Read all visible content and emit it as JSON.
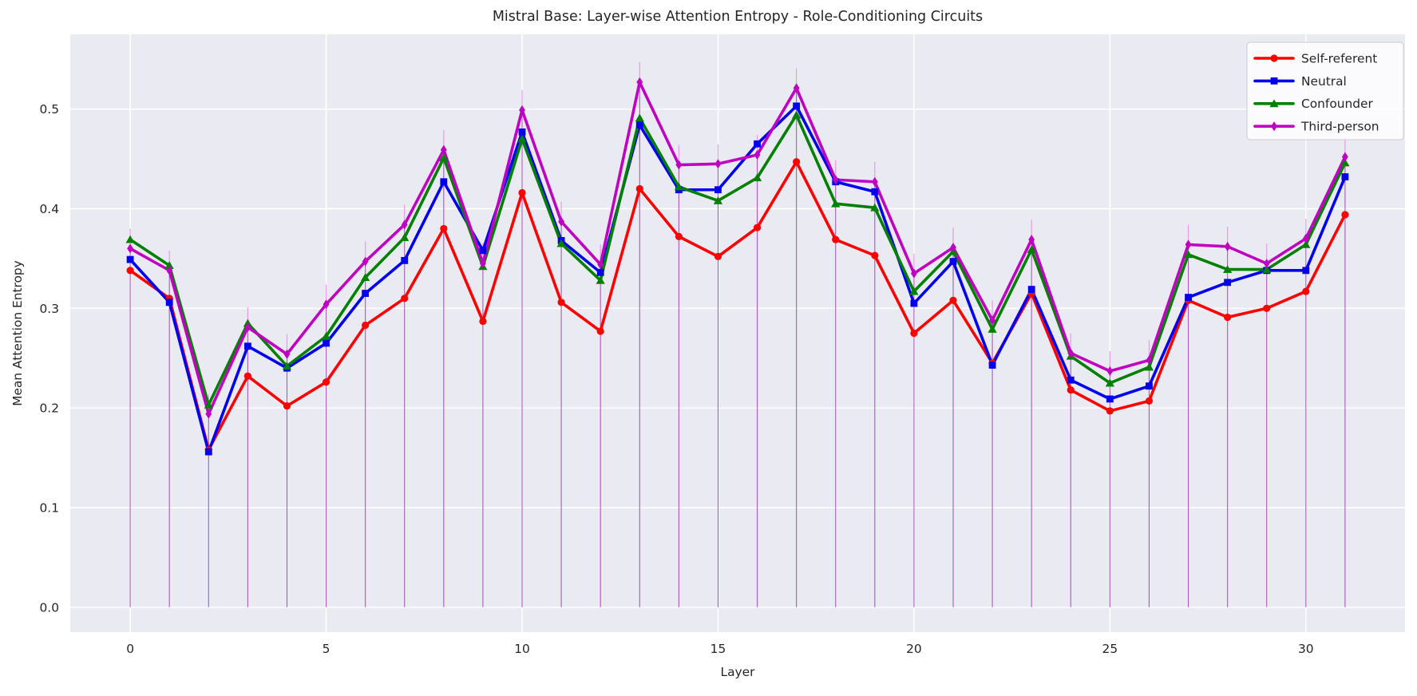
{
  "figure": {
    "title": "Mistral Base: Layer-wise Attention Entropy - Role-Conditioning Circuits",
    "xlabel": "Layer",
    "ylabel": "Mean Attention Entropy",
    "plot_bg": "#eaeaf2",
    "grid_color": "#ffffff",
    "text_color": "#262626",
    "figure_bg": "#ffffff"
  },
  "axes": {
    "x_ticks": [
      0,
      5,
      10,
      15,
      20,
      25,
      30
    ],
    "y_ticks": [
      0.0,
      0.1,
      0.2,
      0.3,
      0.4,
      0.5
    ],
    "xlim": [
      -1.53,
      32.53
    ],
    "ylim": [
      -0.025,
      0.575
    ],
    "grid": true
  },
  "legend": {
    "position": "upper-right",
    "entries": [
      {
        "label": "Self-referent",
        "color": "#ff0000",
        "marker": "circle"
      },
      {
        "label": "Neutral",
        "color": "#0000ee",
        "marker": "square"
      },
      {
        "label": "Confounder",
        "color": "#008000",
        "marker": "triangle"
      },
      {
        "label": "Third-person",
        "color": "#c000c0",
        "marker": "diamond"
      }
    ]
  },
  "chart_data": {
    "type": "line",
    "title": "Mistral Base: Layer-wise Attention Entropy - Role-Conditioning Circuits",
    "xlabel": "Layer",
    "ylabel": "Mean Attention Entropy",
    "x": [
      0,
      1,
      2,
      3,
      4,
      5,
      6,
      7,
      8,
      9,
      10,
      11,
      12,
      13,
      14,
      15,
      16,
      17,
      18,
      19,
      20,
      21,
      22,
      23,
      24,
      25,
      26,
      27,
      28,
      29,
      30,
      31
    ],
    "series": [
      {
        "name": "Self-referent",
        "color": "#ff0000",
        "marker": "circle",
        "values": [
          0.338,
          0.31,
          0.158,
          0.232,
          0.202,
          0.226,
          0.283,
          0.31,
          0.38,
          0.287,
          0.416,
          0.306,
          0.277,
          0.42,
          0.372,
          0.352,
          0.381,
          0.447,
          0.369,
          0.353,
          0.275,
          0.308,
          0.245,
          0.315,
          0.218,
          0.197,
          0.207,
          0.308,
          0.291,
          0.3,
          0.317,
          0.394
        ]
      },
      {
        "name": "Neutral",
        "color": "#0000ee",
        "marker": "square",
        "values": [
          0.349,
          0.306,
          0.156,
          0.262,
          0.24,
          0.265,
          0.315,
          0.348,
          0.427,
          0.358,
          0.477,
          0.368,
          0.336,
          0.484,
          0.419,
          0.419,
          0.465,
          0.503,
          0.427,
          0.417,
          0.305,
          0.347,
          0.243,
          0.319,
          0.228,
          0.209,
          0.222,
          0.311,
          0.326,
          0.338,
          0.338,
          0.432
        ]
      },
      {
        "name": "Confounder",
        "color": "#008000",
        "marker": "triangle",
        "values": [
          0.369,
          0.343,
          0.203,
          0.285,
          0.242,
          0.272,
          0.331,
          0.371,
          0.451,
          0.342,
          0.47,
          0.365,
          0.328,
          0.491,
          0.422,
          0.408,
          0.431,
          0.494,
          0.405,
          0.401,
          0.317,
          0.357,
          0.279,
          0.359,
          0.252,
          0.225,
          0.241,
          0.354,
          0.339,
          0.339,
          0.364,
          0.446
        ]
      },
      {
        "name": "Third-person",
        "color": "#c000c0",
        "marker": "diamond",
        "values": [
          0.36,
          0.338,
          0.194,
          0.281,
          0.254,
          0.304,
          0.347,
          0.384,
          0.459,
          0.345,
          0.499,
          0.387,
          0.344,
          0.527,
          0.444,
          0.445,
          0.454,
          0.521,
          0.429,
          0.427,
          0.335,
          0.361,
          0.288,
          0.369,
          0.255,
          0.237,
          0.248,
          0.364,
          0.362,
          0.345,
          0.37,
          0.452
        ]
      }
    ],
    "stems": {
      "present": true,
      "from_value": 0,
      "tip_offset_above_top_series": 0.02,
      "stem_color": "rgba(160,64,176,0.85)",
      "tip_color": "rgba(232,150,232,0.95)"
    }
  }
}
